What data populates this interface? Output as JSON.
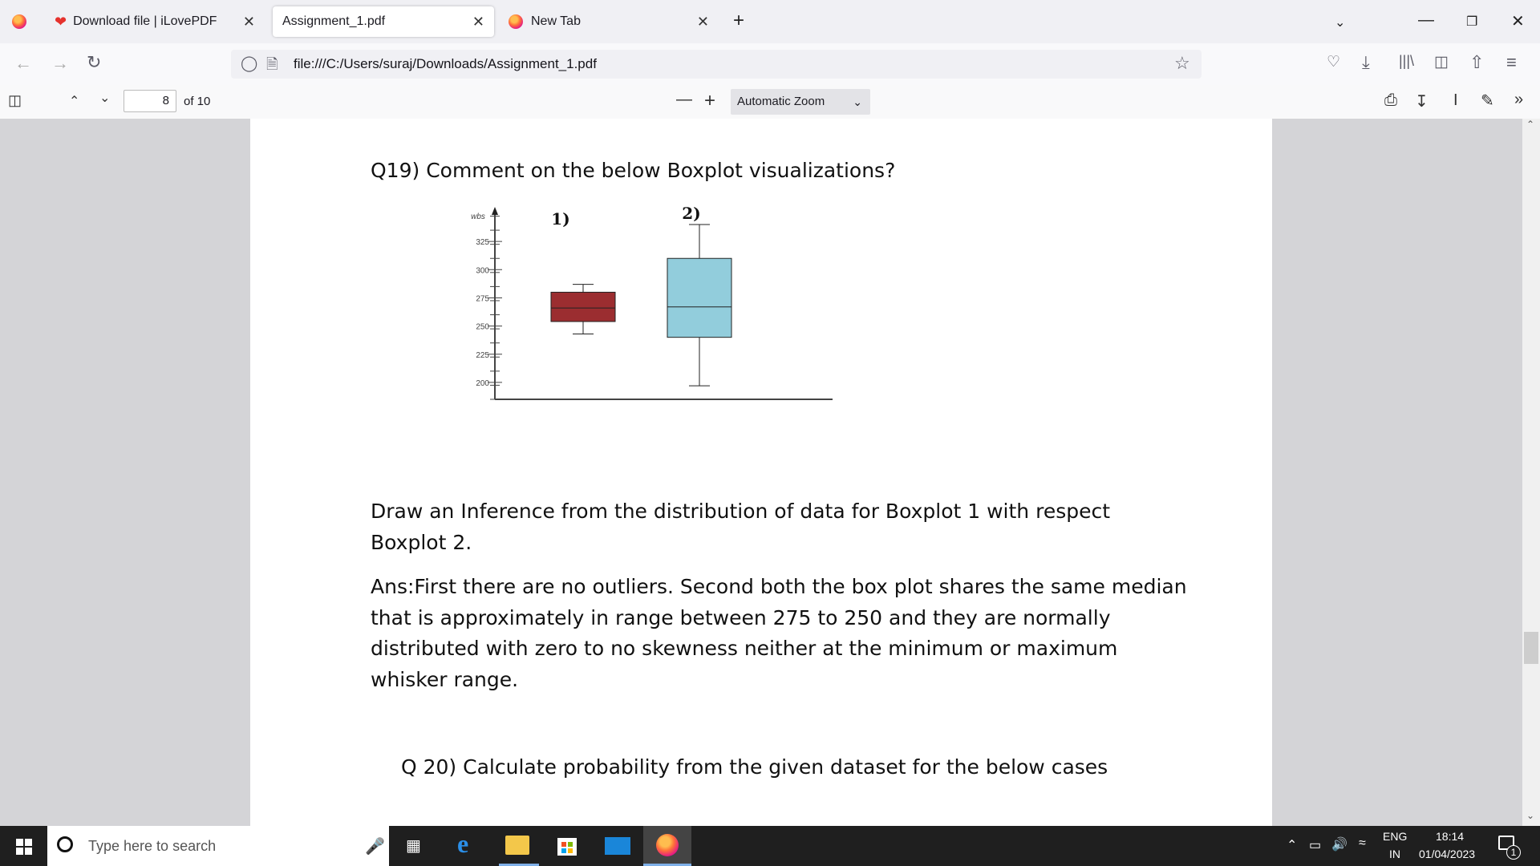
{
  "browser": {
    "tabs": [
      {
        "title": "Download file | iLovePDF",
        "active": false
      },
      {
        "title": "Assignment_1.pdf",
        "active": true
      },
      {
        "title": "New Tab",
        "active": false
      }
    ],
    "url": "file:///C:/Users/suraj/Downloads/Assignment_1.pdf"
  },
  "pdf_toolbar": {
    "page_number": "8",
    "page_count": "of 10",
    "zoom": "Automatic Zoom"
  },
  "document": {
    "q19": "Q19) Comment on the below Boxplot visualizations?",
    "inference_line1": "Draw an Inference from the distribution of data for Boxplot 1 with respect",
    "inference_line2": "Boxplot 2.",
    "ans_line1": "Ans:First there are no outliers. Second both the box plot shares the same median",
    "ans_line2": "that is approximately in range between 275 to 250 and they are normally",
    "ans_line3": "distributed with zero to no skewness neither at the minimum or maximum",
    "ans_line4": "whisker range.",
    "q20": "Q 20) Calculate probability from the given dataset for the below cases"
  },
  "chart_data": {
    "type": "boxplot",
    "ylabel": "wbs",
    "yticks": [
      200,
      225,
      250,
      275,
      300,
      325
    ],
    "ylim": [
      185,
      350
    ],
    "series": [
      {
        "name": "1)",
        "min": 243,
        "q1": 254,
        "median": 266,
        "q3": 280,
        "max": 287,
        "color": "#9b2d30"
      },
      {
        "name": "2)",
        "min": 197,
        "q1": 240,
        "median": 267,
        "q3": 310,
        "max": 340,
        "color": "#92cddc"
      }
    ]
  },
  "taskbar": {
    "search_placeholder": "Type here to search",
    "lang_top": "ENG",
    "lang_bottom": "IN",
    "time": "18:14",
    "date": "01/04/2023",
    "notification_count": "1"
  }
}
